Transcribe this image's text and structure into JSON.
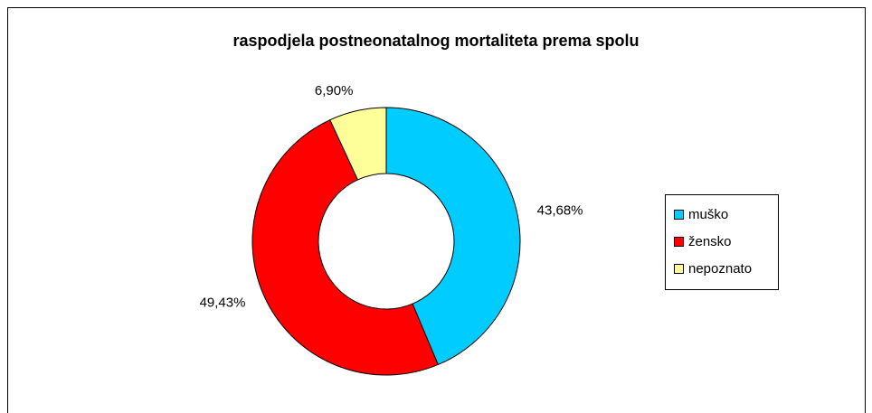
{
  "chart_data": {
    "type": "donut",
    "title": "raspodjela postneonatalnog mortaliteta prema spolu",
    "categories": [
      "muško",
      "žensko",
      "nepoznato"
    ],
    "values": [
      43.68,
      49.43,
      6.9
    ],
    "value_labels": [
      "43,68%",
      "49,43%",
      "6,90%"
    ],
    "colors": [
      "#00ccff",
      "#ff0000",
      "#ffff99"
    ],
    "legend": "right"
  }
}
